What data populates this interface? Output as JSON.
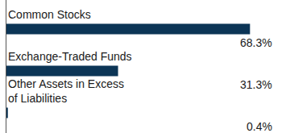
{
  "chart_data": {
    "type": "bar",
    "orientation": "horizontal",
    "categories": [
      "Common Stocks",
      "Exchange-Traded Funds",
      "Other Assets in Excess of Liabilities"
    ],
    "values": [
      68.3,
      31.3,
      0.4
    ],
    "value_labels": [
      "68.3%",
      "31.3%",
      "0.4%"
    ],
    "data_labels": true,
    "color": "#0c3556",
    "xlim": [
      0,
      75
    ],
    "grid": false,
    "tick_labels": false
  }
}
